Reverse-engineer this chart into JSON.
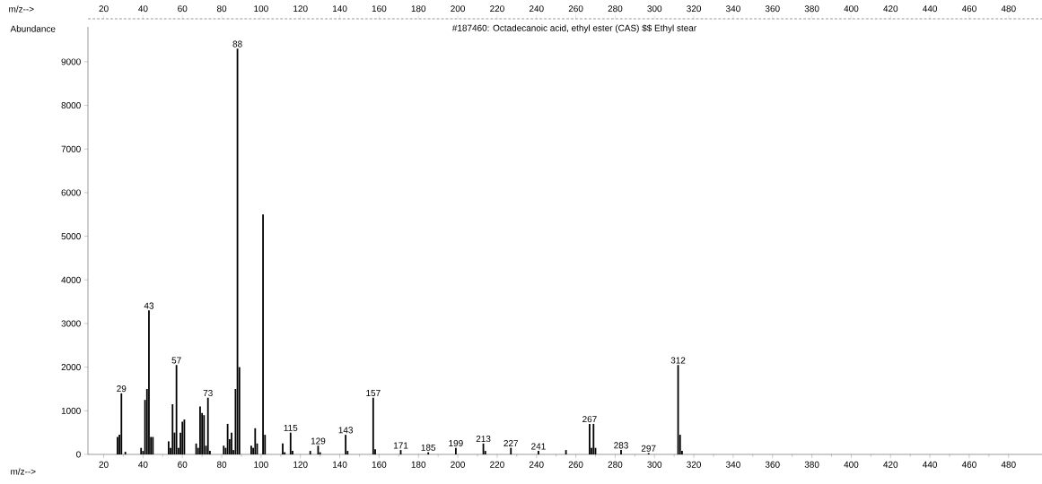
{
  "chart_data": {
    "type": "bar",
    "title": "#187460: Octadecanoic acid, ethyl ester (CAS) $$ Ethyl stear",
    "ylabel": "Abundance",
    "xlabel": "m/z-->",
    "x2label": "m/z-->",
    "x": [
      27,
      28,
      29,
      31,
      39,
      40,
      41,
      42,
      43,
      44,
      45,
      53,
      54,
      55,
      56,
      57,
      58,
      59,
      60,
      61,
      67,
      68,
      69,
      70,
      71,
      72,
      73,
      74,
      81,
      82,
      83,
      84,
      85,
      86,
      87,
      88,
      89,
      95,
      96,
      97,
      98,
      101,
      102,
      111,
      112,
      115,
      116,
      125,
      129,
      130,
      143,
      144,
      157,
      158,
      171,
      185,
      199,
      213,
      214,
      227,
      241,
      255,
      267,
      268,
      269,
      270,
      283,
      297,
      312,
      313,
      314
    ],
    "values": [
      400,
      450,
      1400,
      60,
      150,
      80,
      1250,
      1500,
      3300,
      400,
      400,
      300,
      150,
      1150,
      500,
      2050,
      150,
      500,
      750,
      800,
      250,
      150,
      1100,
      950,
      900,
      200,
      1300,
      80,
      200,
      150,
      700,
      350,
      500,
      100,
      1500,
      9300,
      2000,
      200,
      150,
      600,
      250,
      5500,
      450,
      250,
      50,
      500,
      80,
      80,
      200,
      50,
      450,
      80,
      1300,
      120,
      100,
      50,
      150,
      250,
      80,
      150,
      80,
      100,
      700,
      150,
      700,
      150,
      100,
      30,
      2050,
      450,
      80
    ],
    "color": "#000000",
    "xlim": [
      12,
      497
    ],
    "ylim": [
      0,
      9800
    ],
    "xticks": [
      20,
      40,
      60,
      80,
      100,
      120,
      140,
      160,
      180,
      200,
      220,
      240,
      260,
      280,
      300,
      320,
      340,
      360,
      380,
      400,
      420,
      440,
      460,
      480
    ],
    "yticks": [
      0,
      1000,
      2000,
      3000,
      4000,
      5000,
      6000,
      7000,
      8000,
      9000
    ],
    "x2lim": [
      12,
      497
    ],
    "x2ticks": [
      20,
      40,
      60,
      80,
      100,
      120,
      140,
      160,
      180,
      200,
      220,
      240,
      260,
      280,
      300,
      320,
      340,
      360,
      380,
      400,
      420,
      440,
      460,
      480
    ],
    "annotations": [
      {
        "text": "29",
        "x": 29,
        "y": 1400
      },
      {
        "text": "43",
        "x": 43,
        "y": 3300
      },
      {
        "text": "57",
        "x": 57,
        "y": 2050
      },
      {
        "text": "73",
        "x": 73,
        "y": 1300
      },
      {
        "text": "88",
        "x": 88,
        "y": 9300
      },
      {
        "text": "115",
        "x": 115,
        "y": 500
      },
      {
        "text": "129",
        "x": 129,
        "y": 200
      },
      {
        "text": "143",
        "x": 143,
        "y": 450
      },
      {
        "text": "157",
        "x": 157,
        "y": 1300
      },
      {
        "text": "171",
        "x": 171,
        "y": 100
      },
      {
        "text": "185",
        "x": 185,
        "y": 50
      },
      {
        "text": "199",
        "x": 199,
        "y": 150
      },
      {
        "text": "213",
        "x": 213,
        "y": 250
      },
      {
        "text": "227",
        "x": 227,
        "y": 150
      },
      {
        "text": "241",
        "x": 241,
        "y": 80
      },
      {
        "text": "267",
        "x": 267,
        "y": 700
      },
      {
        "text": "283",
        "x": 283,
        "y": 100
      },
      {
        "text": "297",
        "x": 297,
        "y": 30
      },
      {
        "text": "312",
        "x": 312,
        "y": 2050
      }
    ],
    "grid": false
  }
}
